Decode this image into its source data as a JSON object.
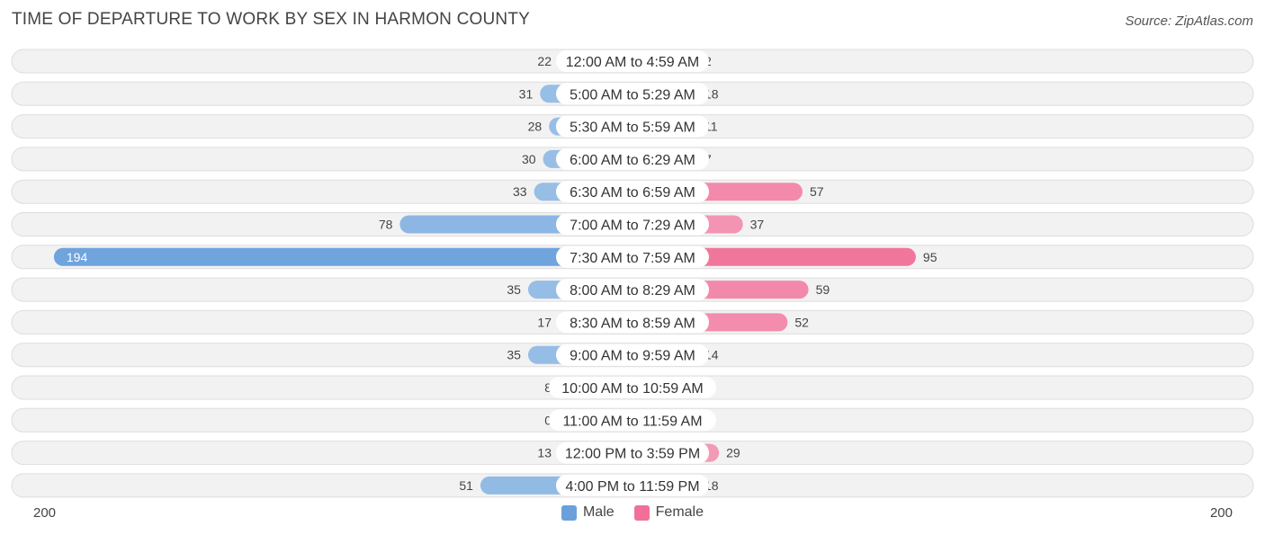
{
  "header": {
    "title": "TIME OF DEPARTURE TO WORK BY SEX IN HARMON COUNTY",
    "source": "Source: ZipAtlas.com"
  },
  "axis": {
    "left_label": "200",
    "right_label": "200"
  },
  "legend": {
    "male_label": "Male",
    "female_label": "Female"
  },
  "colors": {
    "male": "#9fc3e7",
    "male_strong": "#6aa0dc",
    "female": "#f6a8c1",
    "female_strong": "#f07098",
    "row_bg": "#f2f2f2",
    "row_border": "#dddddd"
  },
  "chart_data": {
    "type": "bar",
    "orientation": "horizontal-diverging",
    "title": "TIME OF DEPARTURE TO WORK BY SEX IN HARMON COUNTY",
    "categories": [
      "12:00 AM to 4:59 AM",
      "5:00 AM to 5:29 AM",
      "5:30 AM to 5:59 AM",
      "6:00 AM to 6:29 AM",
      "6:30 AM to 6:59 AM",
      "7:00 AM to 7:29 AM",
      "7:30 AM to 7:59 AM",
      "8:00 AM to 8:29 AM",
      "8:30 AM to 8:59 AM",
      "9:00 AM to 9:59 AM",
      "10:00 AM to 10:59 AM",
      "11:00 AM to 11:59 AM",
      "12:00 PM to 3:59 PM",
      "4:00 PM to 11:59 PM"
    ],
    "series": [
      {
        "name": "Male",
        "values": [
          22,
          31,
          28,
          30,
          33,
          78,
          194,
          35,
          17,
          35,
          8,
          0,
          13,
          51
        ]
      },
      {
        "name": "Female",
        "values": [
          2,
          18,
          11,
          7,
          57,
          37,
          95,
          59,
          52,
          14,
          0,
          0,
          29,
          18
        ]
      }
    ],
    "xlim": [
      -200,
      200
    ],
    "legend_position": "bottom-center"
  }
}
